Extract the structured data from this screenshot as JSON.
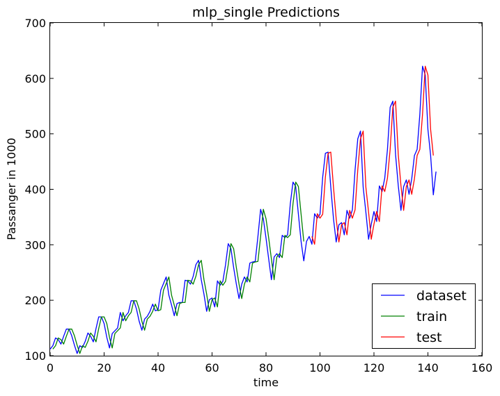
{
  "chart_data": {
    "type": "line",
    "title": "mlp_single Predictions",
    "xlabel": "time",
    "ylabel": "Passanger in 1000",
    "xlim": [
      0,
      160
    ],
    "ylim": [
      100,
      700
    ],
    "xticks": [
      "0",
      "20",
      "40",
      "60",
      "80",
      "100",
      "120",
      "140",
      "160"
    ],
    "yticks": [
      "100",
      "200",
      "300",
      "400",
      "500",
      "600",
      "700"
    ],
    "grid": false,
    "legend_position": "lower-right",
    "series": [
      {
        "name": "dataset",
        "color": "#0000ff",
        "x_start": 0,
        "values": [
          112,
          118,
          132,
          129,
          121,
          135,
          148,
          148,
          136,
          119,
          104,
          118,
          115,
          126,
          141,
          135,
          125,
          149,
          170,
          170,
          158,
          133,
          114,
          140,
          145,
          150,
          178,
          163,
          172,
          178,
          199,
          199,
          184,
          162,
          146,
          166,
          171,
          180,
          193,
          181,
          183,
          218,
          230,
          242,
          209,
          191,
          172,
          194,
          196,
          196,
          236,
          235,
          229,
          243,
          264,
          272,
          237,
          211,
          180,
          201,
          204,
          188,
          235,
          227,
          234,
          264,
          302,
          293,
          259,
          229,
          203,
          229,
          242,
          233,
          267,
          269,
          270,
          315,
          364,
          347,
          312,
          274,
          237,
          278,
          284,
          277,
          317,
          313,
          318,
          374,
          413,
          405,
          355,
          306,
          271,
          306,
          315,
          301,
          356,
          348,
          355,
          422,
          465,
          467,
          404,
          347,
          305,
          336,
          340,
          318,
          362,
          348,
          363,
          435,
          491,
          505,
          404,
          359,
          310,
          337,
          360,
          342,
          406,
          396,
          420,
          472,
          548,
          559,
          463,
          407,
          362,
          405,
          417,
          391,
          419,
          461,
          472,
          535,
          622,
          606,
          508,
          461,
          390,
          432
        ]
      },
      {
        "name": "train",
        "color": "#008000",
        "x_start": 1,
        "values": [
          112,
          118,
          132,
          129,
          121,
          135,
          148,
          148,
          136,
          119,
          104,
          118,
          115,
          126,
          141,
          135,
          125,
          149,
          170,
          170,
          158,
          133,
          114,
          140,
          145,
          150,
          178,
          163,
          172,
          178,
          199,
          199,
          184,
          162,
          146,
          166,
          171,
          180,
          193,
          181,
          183,
          218,
          230,
          242,
          209,
          191,
          172,
          194,
          196,
          196,
          236,
          235,
          229,
          243,
          264,
          272,
          237,
          211,
          180,
          201,
          204,
          188,
          235,
          227,
          234,
          264,
          302,
          293,
          259,
          229,
          203,
          229,
          242,
          233,
          267,
          269,
          270,
          315,
          364,
          347,
          312,
          274,
          237,
          278,
          284,
          277,
          317,
          313,
          318,
          374,
          413,
          405,
          355,
          306
        ]
      },
      {
        "name": "test",
        "color": "#ff0000",
        "x_start": 97,
        "values": [
          315,
          301,
          356,
          348,
          355,
          422,
          465,
          467,
          404,
          347,
          305,
          336,
          340,
          318,
          362,
          348,
          363,
          435,
          491,
          505,
          404,
          359,
          310,
          337,
          360,
          342,
          406,
          396,
          420,
          472,
          548,
          559,
          463,
          407,
          362,
          405,
          417,
          391,
          419,
          461,
          472,
          535,
          622,
          606,
          508,
          461
        ]
      }
    ]
  }
}
